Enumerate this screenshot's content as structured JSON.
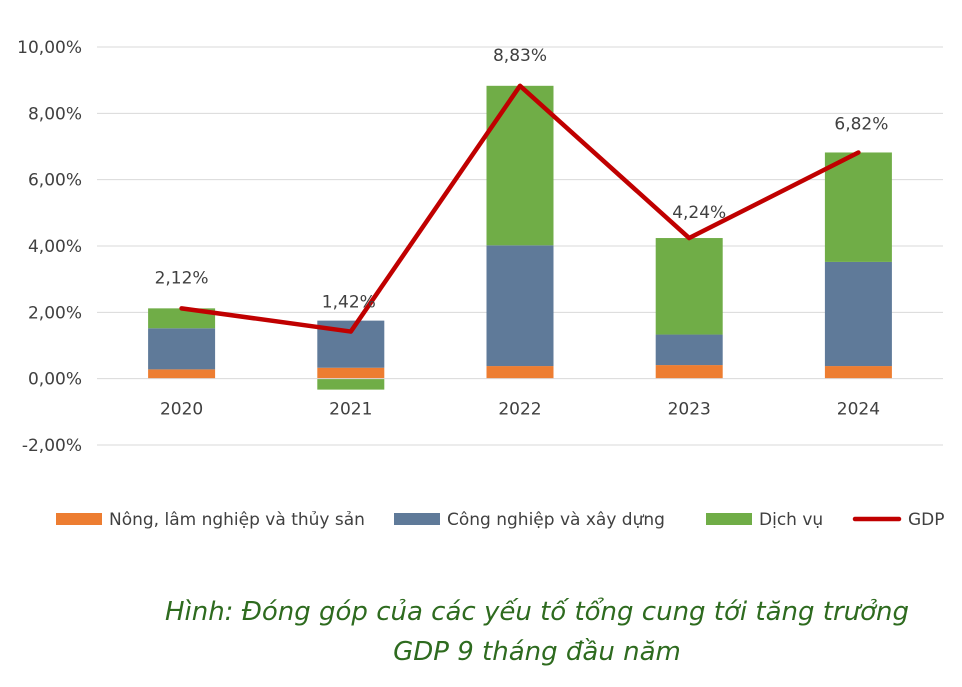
{
  "chart_data": {
    "type": "bar",
    "stacked": true,
    "categories": [
      "2020",
      "2021",
      "2022",
      "2023",
      "2024"
    ],
    "ylim": [
      -2,
      10
    ],
    "yticks": [
      -2,
      0,
      2,
      4,
      6,
      8,
      10
    ],
    "ytick_labels": [
      "-2,00%",
      "0,00%",
      "2,00%",
      "4,00%",
      "6,00%",
      "8,00%",
      "10,00%"
    ],
    "grid": true,
    "legend_position": "bottom",
    "series": [
      {
        "name": "Nông, lâm nghiệp và thủy sản",
        "type": "bar",
        "color": "#ed7d31",
        "values": [
          0.28,
          0.33,
          0.38,
          0.41,
          0.38
        ]
      },
      {
        "name": "Công nghiệp và xây dựng",
        "type": "bar",
        "color": "#5f7a99",
        "values": [
          1.24,
          1.42,
          3.64,
          0.92,
          3.14
        ]
      },
      {
        "name": "Dịch vụ",
        "type": "bar",
        "color": "#70ad47",
        "values": [
          0.6,
          -0.33,
          4.81,
          2.91,
          3.3
        ]
      },
      {
        "name": "GDP",
        "type": "line",
        "color": "#c00000",
        "values": [
          2.12,
          1.42,
          8.83,
          4.24,
          6.82
        ],
        "labels": [
          "2,12%",
          "1,42%",
          "8,83%",
          "4,24%",
          "6,82%"
        ]
      }
    ]
  },
  "caption": {
    "line1": "Hình: Đóng góp của các yếu tố tổng cung tới tăng trưởng",
    "line2": "GDP 9 tháng đầu năm"
  }
}
